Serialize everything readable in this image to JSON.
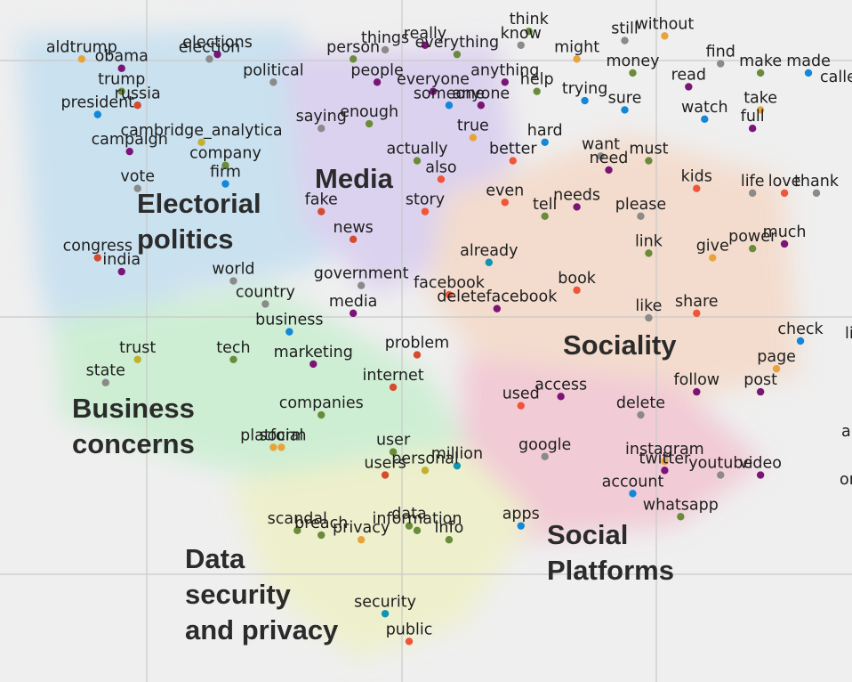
{
  "chart_data": {
    "type": "scatter",
    "title": "",
    "xlabel": "",
    "ylabel": "",
    "grid": true,
    "legend": "none",
    "categories_palette": {
      "olive": "#6a8c3a",
      "purple": "#7b1477",
      "gray": "#8a8a8a",
      "red": "#f05539",
      "orange": "#e8a43a",
      "blue": "#1387d8",
      "yellow": "#c2b02e",
      "teal": "#1193b2",
      "darkred": "#d64a2e"
    },
    "clusters": [
      {
        "name": "electoral",
        "label_lines": [
          "Electorial",
          "politics"
        ],
        "color": "#c4dff0"
      },
      {
        "name": "media",
        "label_lines": [
          "Media"
        ],
        "color": "#d8cdef"
      },
      {
        "name": "sociality",
        "label_lines": [
          "Sociality"
        ],
        "color": "#f4d9c8"
      },
      {
        "name": "business",
        "label_lines": [
          "Business",
          "concerns"
        ],
        "color": "#c9eed0"
      },
      {
        "name": "social_platforms",
        "label_lines": [
          "Social",
          "Platforms"
        ],
        "color": "#f2c5d2"
      },
      {
        "name": "data_security",
        "label_lines": [
          "Data",
          "security",
          "and privacy"
        ],
        "color": "#eef0c6"
      }
    ],
    "points": [
      {
        "word": "aldtrump",
        "x": 0.8,
        "y": 10.6,
        "c": "orange"
      },
      {
        "word": "obama",
        "x": 1.3,
        "y": 10.4,
        "c": "purple"
      },
      {
        "word": "elections",
        "x": 2.5,
        "y": 10.7,
        "c": "purple"
      },
      {
        "word": "election",
        "x": 2.4,
        "y": 10.6,
        "c": "gray"
      },
      {
        "word": "person",
        "x": 4.2,
        "y": 10.6,
        "c": "olive"
      },
      {
        "word": "things",
        "x": 4.6,
        "y": 10.8,
        "c": "gray"
      },
      {
        "word": "really",
        "x": 5.1,
        "y": 10.9,
        "c": "purple"
      },
      {
        "word": "everything",
        "x": 5.5,
        "y": 10.7,
        "c": "olive"
      },
      {
        "word": "think",
        "x": 6.4,
        "y": 11.2,
        "c": "olive"
      },
      {
        "word": "know",
        "x": 6.3,
        "y": 10.9,
        "c": "gray"
      },
      {
        "word": "might",
        "x": 7.0,
        "y": 10.6,
        "c": "orange"
      },
      {
        "word": "still",
        "x": 7.6,
        "y": 11.0,
        "c": "gray"
      },
      {
        "word": "without",
        "x": 8.1,
        "y": 11.1,
        "c": "orange"
      },
      {
        "word": "trump",
        "x": 1.3,
        "y": 9.9,
        "c": "olive"
      },
      {
        "word": "russia",
        "x": 1.5,
        "y": 9.6,
        "c": "darkred"
      },
      {
        "word": "president",
        "x": 1.0,
        "y": 9.4,
        "c": "blue"
      },
      {
        "word": "political",
        "x": 3.2,
        "y": 10.1,
        "c": "gray"
      },
      {
        "word": "people",
        "x": 4.5,
        "y": 10.1,
        "c": "purple"
      },
      {
        "word": "everyone",
        "x": 5.2,
        "y": 9.9,
        "c": "purple"
      },
      {
        "word": "anything",
        "x": 6.1,
        "y": 10.1,
        "c": "purple"
      },
      {
        "word": "help",
        "x": 6.5,
        "y": 9.9,
        "c": "olive"
      },
      {
        "word": "money",
        "x": 7.7,
        "y": 10.3,
        "c": "olive"
      },
      {
        "word": "find",
        "x": 8.8,
        "y": 10.5,
        "c": "gray"
      },
      {
        "word": "make",
        "x": 9.3,
        "y": 10.3,
        "c": "olive"
      },
      {
        "word": "made",
        "x": 9.9,
        "y": 10.3,
        "c": "blue"
      },
      {
        "word": "read",
        "x": 8.4,
        "y": 10.0,
        "c": "purple"
      },
      {
        "word": "someone",
        "x": 5.4,
        "y": 9.6,
        "c": "blue"
      },
      {
        "word": "anyone",
        "x": 5.8,
        "y": 9.6,
        "c": "purple"
      },
      {
        "word": "trying",
        "x": 7.1,
        "y": 9.7,
        "c": "blue"
      },
      {
        "word": "sure",
        "x": 7.6,
        "y": 9.5,
        "c": "blue"
      },
      {
        "word": "watch",
        "x": 8.6,
        "y": 9.3,
        "c": "blue"
      },
      {
        "word": "take",
        "x": 9.3,
        "y": 9.5,
        "c": "orange"
      },
      {
        "word": "full",
        "x": 9.2,
        "y": 9.1,
        "c": "purple"
      },
      {
        "word": "cambridge_analytica",
        "x": 2.3,
        "y": 8.8,
        "c": "yellow"
      },
      {
        "word": "campaign",
        "x": 1.4,
        "y": 8.6,
        "c": "purple"
      },
      {
        "word": "saying",
        "x": 3.8,
        "y": 9.1,
        "c": "gray"
      },
      {
        "word": "enough",
        "x": 4.4,
        "y": 9.2,
        "c": "olive"
      },
      {
        "word": "true",
        "x": 5.7,
        "y": 8.9,
        "c": "orange"
      },
      {
        "word": "hard",
        "x": 6.6,
        "y": 8.8,
        "c": "blue"
      },
      {
        "word": "company",
        "x": 2.6,
        "y": 8.3,
        "c": "olive"
      },
      {
        "word": "firm",
        "x": 2.6,
        "y": 7.9,
        "c": "blue"
      },
      {
        "word": "actually",
        "x": 5.0,
        "y": 8.4,
        "c": "olive"
      },
      {
        "word": "also",
        "x": 5.3,
        "y": 8.0,
        "c": "red"
      },
      {
        "word": "better",
        "x": 6.2,
        "y": 8.4,
        "c": "red"
      },
      {
        "word": "want",
        "x": 7.3,
        "y": 8.5,
        "c": "gray"
      },
      {
        "word": "need",
        "x": 7.4,
        "y": 8.2,
        "c": "purple"
      },
      {
        "word": "must",
        "x": 7.9,
        "y": 8.4,
        "c": "olive"
      },
      {
        "word": "vote",
        "x": 1.5,
        "y": 7.8,
        "c": "gray"
      },
      {
        "word": "kids",
        "x": 8.5,
        "y": 7.8,
        "c": "red"
      },
      {
        "word": "life",
        "x": 9.2,
        "y": 7.7,
        "c": "gray"
      },
      {
        "word": "love",
        "x": 9.6,
        "y": 7.7,
        "c": "red"
      },
      {
        "word": "thank",
        "x": 10.0,
        "y": 7.7,
        "c": "gray"
      },
      {
        "word": "fake",
        "x": 3.8,
        "y": 7.3,
        "c": "darkred"
      },
      {
        "word": "story",
        "x": 5.1,
        "y": 7.3,
        "c": "red"
      },
      {
        "word": "even",
        "x": 6.1,
        "y": 7.5,
        "c": "red"
      },
      {
        "word": "needs",
        "x": 7.0,
        "y": 7.4,
        "c": "purple"
      },
      {
        "word": "tell",
        "x": 6.6,
        "y": 7.2,
        "c": "olive"
      },
      {
        "word": "please",
        "x": 7.8,
        "y": 7.2,
        "c": "gray"
      },
      {
        "word": "news",
        "x": 4.2,
        "y": 6.7,
        "c": "darkred"
      },
      {
        "word": "link",
        "x": 7.9,
        "y": 6.4,
        "c": "olive"
      },
      {
        "word": "give",
        "x": 8.7,
        "y": 6.3,
        "c": "orange"
      },
      {
        "word": "power",
        "x": 9.2,
        "y": 6.5,
        "c": "olive"
      },
      {
        "word": "much",
        "x": 9.6,
        "y": 6.6,
        "c": "purple"
      },
      {
        "word": "congress",
        "x": 1.0,
        "y": 6.3,
        "c": "darkred"
      },
      {
        "word": "india",
        "x": 1.3,
        "y": 6.0,
        "c": "purple"
      },
      {
        "word": "already",
        "x": 5.9,
        "y": 6.2,
        "c": "teal"
      },
      {
        "word": "world",
        "x": 2.7,
        "y": 5.8,
        "c": "gray"
      },
      {
        "word": "government",
        "x": 4.3,
        "y": 5.7,
        "c": "gray"
      },
      {
        "word": "facebook",
        "x": 5.4,
        "y": 5.5,
        "c": "red"
      },
      {
        "word": "book",
        "x": 7.0,
        "y": 5.6,
        "c": "red"
      },
      {
        "word": "country",
        "x": 3.1,
        "y": 5.3,
        "c": "gray"
      },
      {
        "word": "media",
        "x": 4.2,
        "y": 5.1,
        "c": "purple"
      },
      {
        "word": "deletefacebook",
        "x": 6.0,
        "y": 5.2,
        "c": "purple"
      },
      {
        "word": "like",
        "x": 7.9,
        "y": 5.0,
        "c": "gray"
      },
      {
        "word": "share",
        "x": 8.5,
        "y": 5.1,
        "c": "red"
      },
      {
        "word": "business",
        "x": 3.4,
        "y": 4.7,
        "c": "blue"
      },
      {
        "word": "check",
        "x": 9.8,
        "y": 4.5,
        "c": "blue"
      },
      {
        "word": "trust",
        "x": 1.5,
        "y": 4.1,
        "c": "yellow"
      },
      {
        "word": "tech",
        "x": 2.7,
        "y": 4.1,
        "c": "olive"
      },
      {
        "word": "marketing",
        "x": 3.7,
        "y": 4.0,
        "c": "purple"
      },
      {
        "word": "problem",
        "x": 5.0,
        "y": 4.2,
        "c": "darkred"
      },
      {
        "word": "state",
        "x": 1.1,
        "y": 3.6,
        "c": "gray"
      },
      {
        "word": "internet",
        "x": 4.7,
        "y": 3.5,
        "c": "darkred"
      },
      {
        "word": "page",
        "x": 9.5,
        "y": 3.9,
        "c": "orange"
      },
      {
        "word": "post",
        "x": 9.3,
        "y": 3.4,
        "c": "purple"
      },
      {
        "word": "follow",
        "x": 8.5,
        "y": 3.4,
        "c": "purple"
      },
      {
        "word": "used",
        "x": 6.3,
        "y": 3.1,
        "c": "red"
      },
      {
        "word": "access",
        "x": 6.8,
        "y": 3.3,
        "c": "purple"
      },
      {
        "word": "delete",
        "x": 7.8,
        "y": 2.9,
        "c": "gray"
      },
      {
        "word": "companies",
        "x": 3.8,
        "y": 2.9,
        "c": "olive"
      },
      {
        "word": "platform",
        "x": 3.2,
        "y": 2.2,
        "c": "orange"
      },
      {
        "word": "social",
        "x": 3.3,
        "y": 2.2,
        "c": "orange"
      },
      {
        "word": "user",
        "x": 4.7,
        "y": 2.1,
        "c": "olive"
      },
      {
        "word": "million",
        "x": 5.5,
        "y": 1.8,
        "c": "teal"
      },
      {
        "word": "google",
        "x": 6.6,
        "y": 2.0,
        "c": "gray"
      },
      {
        "word": "instagram",
        "x": 8.1,
        "y": 1.9,
        "c": "orange"
      },
      {
        "word": "twitter",
        "x": 8.1,
        "y": 1.7,
        "c": "purple"
      },
      {
        "word": "youtube",
        "x": 8.8,
        "y": 1.6,
        "c": "gray"
      },
      {
        "word": "video",
        "x": 9.3,
        "y": 1.6,
        "c": "purple"
      },
      {
        "word": "users",
        "x": 4.6,
        "y": 1.6,
        "c": "darkred"
      },
      {
        "word": "personal",
        "x": 5.1,
        "y": 1.7,
        "c": "yellow"
      },
      {
        "word": "account",
        "x": 7.7,
        "y": 1.2,
        "c": "blue"
      },
      {
        "word": "whatsapp",
        "x": 8.3,
        "y": 0.7,
        "c": "olive"
      },
      {
        "word": "apps",
        "x": 6.3,
        "y": 0.5,
        "c": "blue"
      },
      {
        "word": "scandal",
        "x": 3.5,
        "y": 0.4,
        "c": "olive"
      },
      {
        "word": "breach",
        "x": 3.8,
        "y": 0.3,
        "c": "olive"
      },
      {
        "word": "privacy",
        "x": 4.3,
        "y": 0.2,
        "c": "orange"
      },
      {
        "word": "data",
        "x": 4.9,
        "y": 0.5,
        "c": "olive"
      },
      {
        "word": "information",
        "x": 5.0,
        "y": 0.4,
        "c": "olive"
      },
      {
        "word": "info",
        "x": 5.4,
        "y": 0.2,
        "c": "olive"
      },
      {
        "word": "security",
        "x": 4.6,
        "y": -1.4,
        "c": "teal"
      },
      {
        "word": "public",
        "x": 4.9,
        "y": -2.0,
        "c": "red"
      }
    ],
    "xlim": [
      0,
      10
    ],
    "ylim": [
      -2.3,
      11.3
    ],
    "edge_labels": [
      "calle",
      "li",
      "a",
      "or"
    ]
  }
}
